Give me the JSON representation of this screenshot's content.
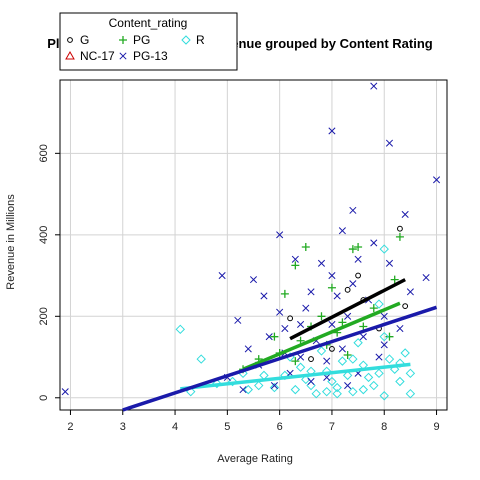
{
  "chart_data": {
    "type": "scatter",
    "title": "Plot of Average Rating vs Revenue grouped by Content Rating",
    "xlabel": "Average Rating",
    "ylabel": "Revenue in Millions",
    "xlim": [
      1.8,
      9.2
    ],
    "ylim": [
      -30,
      780
    ],
    "xticks": [
      "2",
      "3",
      "4",
      "5",
      "6",
      "7",
      "8",
      "9"
    ],
    "yticks": [
      "0",
      "200",
      "400",
      "600"
    ],
    "grid": true,
    "legend": {
      "title": "Content_rating",
      "placement": "top-left",
      "entries": [
        "G",
        "PG",
        "R",
        "NC-17",
        "PG-13"
      ]
    },
    "series": [
      {
        "name": "G",
        "marker": "circle",
        "color": "#000000",
        "points": [
          [
            6.2,
            195
          ],
          [
            7.3,
            265
          ],
          [
            7.6,
            240
          ],
          [
            8.3,
            415
          ],
          [
            8.4,
            225
          ],
          [
            7.0,
            120
          ],
          [
            7.9,
            170
          ],
          [
            6.6,
            95
          ],
          [
            7.5,
            300
          ]
        ],
        "fit": [
          [
            6.2,
            145
          ],
          [
            8.4,
            290
          ]
        ]
      },
      {
        "name": "PG",
        "marker": "plus",
        "color": "#22aa22",
        "points": [
          [
            6.3,
            325
          ],
          [
            6.5,
            370
          ],
          [
            6.1,
            255
          ],
          [
            7.0,
            270
          ],
          [
            7.4,
            365
          ],
          [
            7.5,
            370
          ],
          [
            8.3,
            395
          ],
          [
            8.2,
            290
          ],
          [
            6.8,
            200
          ],
          [
            7.2,
            185
          ],
          [
            5.9,
            150
          ],
          [
            6.4,
            140
          ],
          [
            7.8,
            220
          ],
          [
            7.1,
            160
          ],
          [
            5.6,
            95
          ],
          [
            6.0,
            110
          ],
          [
            6.9,
            130
          ],
          [
            7.6,
            175
          ],
          [
            6.3,
            90
          ],
          [
            7.3,
            105
          ],
          [
            8.1,
            150
          ],
          [
            5.3,
            70
          ],
          [
            6.6,
            175
          ]
        ],
        "fit": [
          [
            5.3,
            70
          ],
          [
            8.3,
            232
          ]
        ]
      },
      {
        "name": "R",
        "marker": "diamond",
        "color": "#33dddd",
        "points": [
          [
            4.1,
            168
          ],
          [
            4.5,
            95
          ],
          [
            4.8,
            35
          ],
          [
            5.1,
            40
          ],
          [
            5.3,
            60
          ],
          [
            5.6,
            30
          ],
          [
            5.9,
            25
          ],
          [
            6.1,
            55
          ],
          [
            6.2,
            100
          ],
          [
            6.4,
            75
          ],
          [
            6.5,
            45
          ],
          [
            6.6,
            30
          ],
          [
            6.7,
            10
          ],
          [
            6.8,
            115
          ],
          [
            6.9,
            65
          ],
          [
            7.0,
            40
          ],
          [
            7.1,
            25
          ],
          [
            7.2,
            90
          ],
          [
            7.3,
            55
          ],
          [
            7.4,
            15
          ],
          [
            7.5,
            135
          ],
          [
            7.6,
            80
          ],
          [
            7.7,
            50
          ],
          [
            7.8,
            30
          ],
          [
            7.9,
            230
          ],
          [
            8.0,
            365
          ],
          [
            8.0,
            150
          ],
          [
            8.1,
            95
          ],
          [
            8.2,
            70
          ],
          [
            8.3,
            40
          ],
          [
            8.4,
            110
          ],
          [
            8.5,
            60
          ],
          [
            8.5,
            10
          ],
          [
            7.9,
            60
          ],
          [
            7.4,
            95
          ],
          [
            6.9,
            15
          ],
          [
            6.3,
            20
          ],
          [
            5.7,
            55
          ],
          [
            5.4,
            20
          ],
          [
            4.3,
            15
          ],
          [
            7.6,
            20
          ],
          [
            8.0,
            5
          ],
          [
            7.1,
            10
          ],
          [
            6.6,
            65
          ],
          [
            8.3,
            85
          ]
        ],
        "fit": [
          [
            4.1,
            22
          ],
          [
            8.5,
            82
          ]
        ]
      },
      {
        "name": "NC-17",
        "marker": "triangle",
        "color": "#cc0000",
        "points": []
      },
      {
        "name": "PG-13",
        "marker": "x",
        "color": "#1a1aaa",
        "points": [
          [
            1.9,
            15
          ],
          [
            4.9,
            300
          ],
          [
            5.0,
            50
          ],
          [
            5.2,
            190
          ],
          [
            5.4,
            120
          ],
          [
            5.5,
            290
          ],
          [
            5.6,
            80
          ],
          [
            5.7,
            250
          ],
          [
            5.8,
            150
          ],
          [
            6.0,
            400
          ],
          [
            6.0,
            210
          ],
          [
            6.1,
            110
          ],
          [
            6.2,
            60
          ],
          [
            6.3,
            340
          ],
          [
            6.4,
            180
          ],
          [
            6.5,
            220
          ],
          [
            6.6,
            260
          ],
          [
            6.7,
            140
          ],
          [
            6.8,
            330
          ],
          [
            6.9,
            90
          ],
          [
            7.0,
            655
          ],
          [
            7.0,
            300
          ],
          [
            7.0,
            180
          ],
          [
            7.1,
            250
          ],
          [
            7.2,
            410
          ],
          [
            7.2,
            120
          ],
          [
            7.3,
            200
          ],
          [
            7.4,
            460
          ],
          [
            7.4,
            280
          ],
          [
            7.5,
            340
          ],
          [
            7.6,
            150
          ],
          [
            7.7,
            240
          ],
          [
            7.8,
            765
          ],
          [
            7.8,
            380
          ],
          [
            7.9,
            100
          ],
          [
            8.0,
            200
          ],
          [
            8.1,
            625
          ],
          [
            8.1,
            330
          ],
          [
            8.3,
            170
          ],
          [
            8.4,
            450
          ],
          [
            8.5,
            260
          ],
          [
            8.8,
            295
          ],
          [
            9.0,
            535
          ],
          [
            6.9,
            50
          ],
          [
            6.4,
            100
          ],
          [
            5.9,
            30
          ],
          [
            7.5,
            60
          ],
          [
            8.0,
            130
          ],
          [
            6.6,
            40
          ],
          [
            7.3,
            30
          ],
          [
            5.3,
            20
          ],
          [
            6.1,
            170
          ]
        ],
        "fit": [
          [
            3.0,
            -30
          ],
          [
            9.0,
            222
          ]
        ]
      }
    ]
  }
}
